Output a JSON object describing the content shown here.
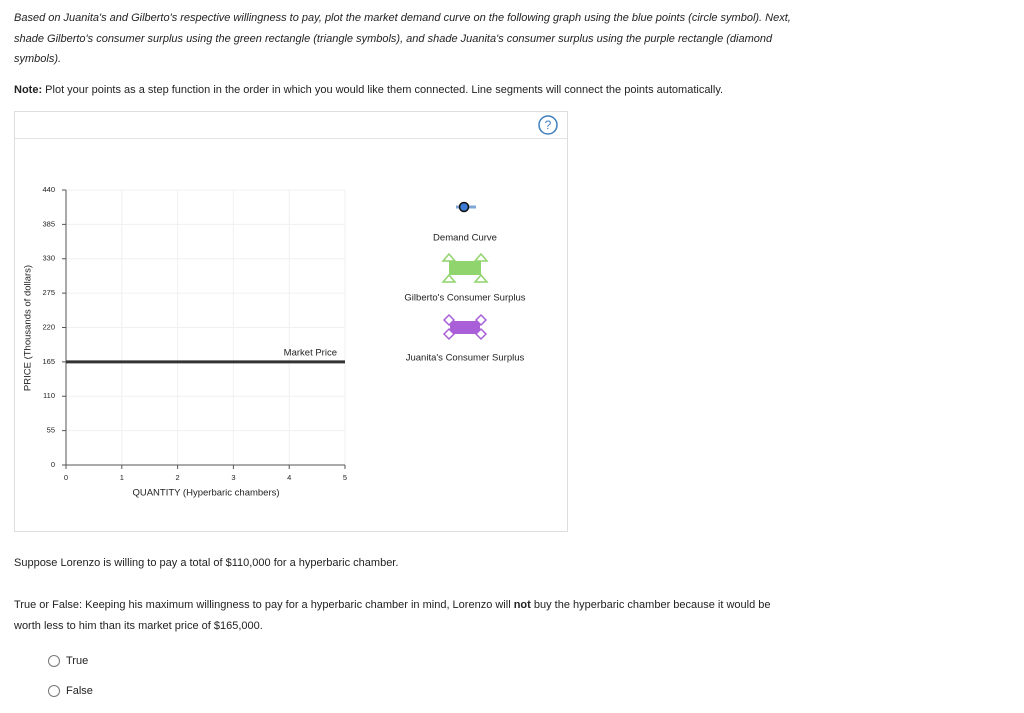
{
  "instructions": "Based on Juanita's and Gilberto's respective willingness to pay, plot the market demand curve on the following graph using the blue points (circle symbol). Next, shade Gilberto's consumer surplus using the green rectangle (triangle symbols), and shade Juanita's consumer surplus using the purple rectangle (diamond symbols).",
  "note": {
    "label": "Note:",
    "text": "Plot your points as a step function in the order in which you would like them connected. Line segments will connect the points automatically."
  },
  "graph": {
    "help": "?",
    "y_label": "PRICE (Thousands of dollars)",
    "x_label": "QUANTITY (Hyperbaric chambers)",
    "ylim": [
      0,
      440
    ],
    "yticks": [
      0,
      55,
      110,
      165,
      220,
      275,
      330,
      385,
      440
    ],
    "xlim": [
      0,
      5
    ],
    "xticks": [
      0,
      1,
      2,
      3,
      4,
      5
    ],
    "market_price": {
      "label": "Market Price",
      "value": 165
    },
    "legend": [
      "Demand Curve",
      "Gilberto's Consumer Surplus",
      "Juanita's Consumer Surplus"
    ]
  },
  "question": "Suppose Lorenzo is willing to pay a total of $110,000 for a hyperbaric chamber.",
  "true_false": {
    "before": "True or False: Keeping his maximum willingness to pay for a hyperbaric chamber in mind, Lorenzo will",
    "bold": "not",
    "after": "buy the hyperbaric chamber because it would be worth less to him than its market price of $165,000."
  },
  "options": [
    "True",
    "False"
  ]
}
